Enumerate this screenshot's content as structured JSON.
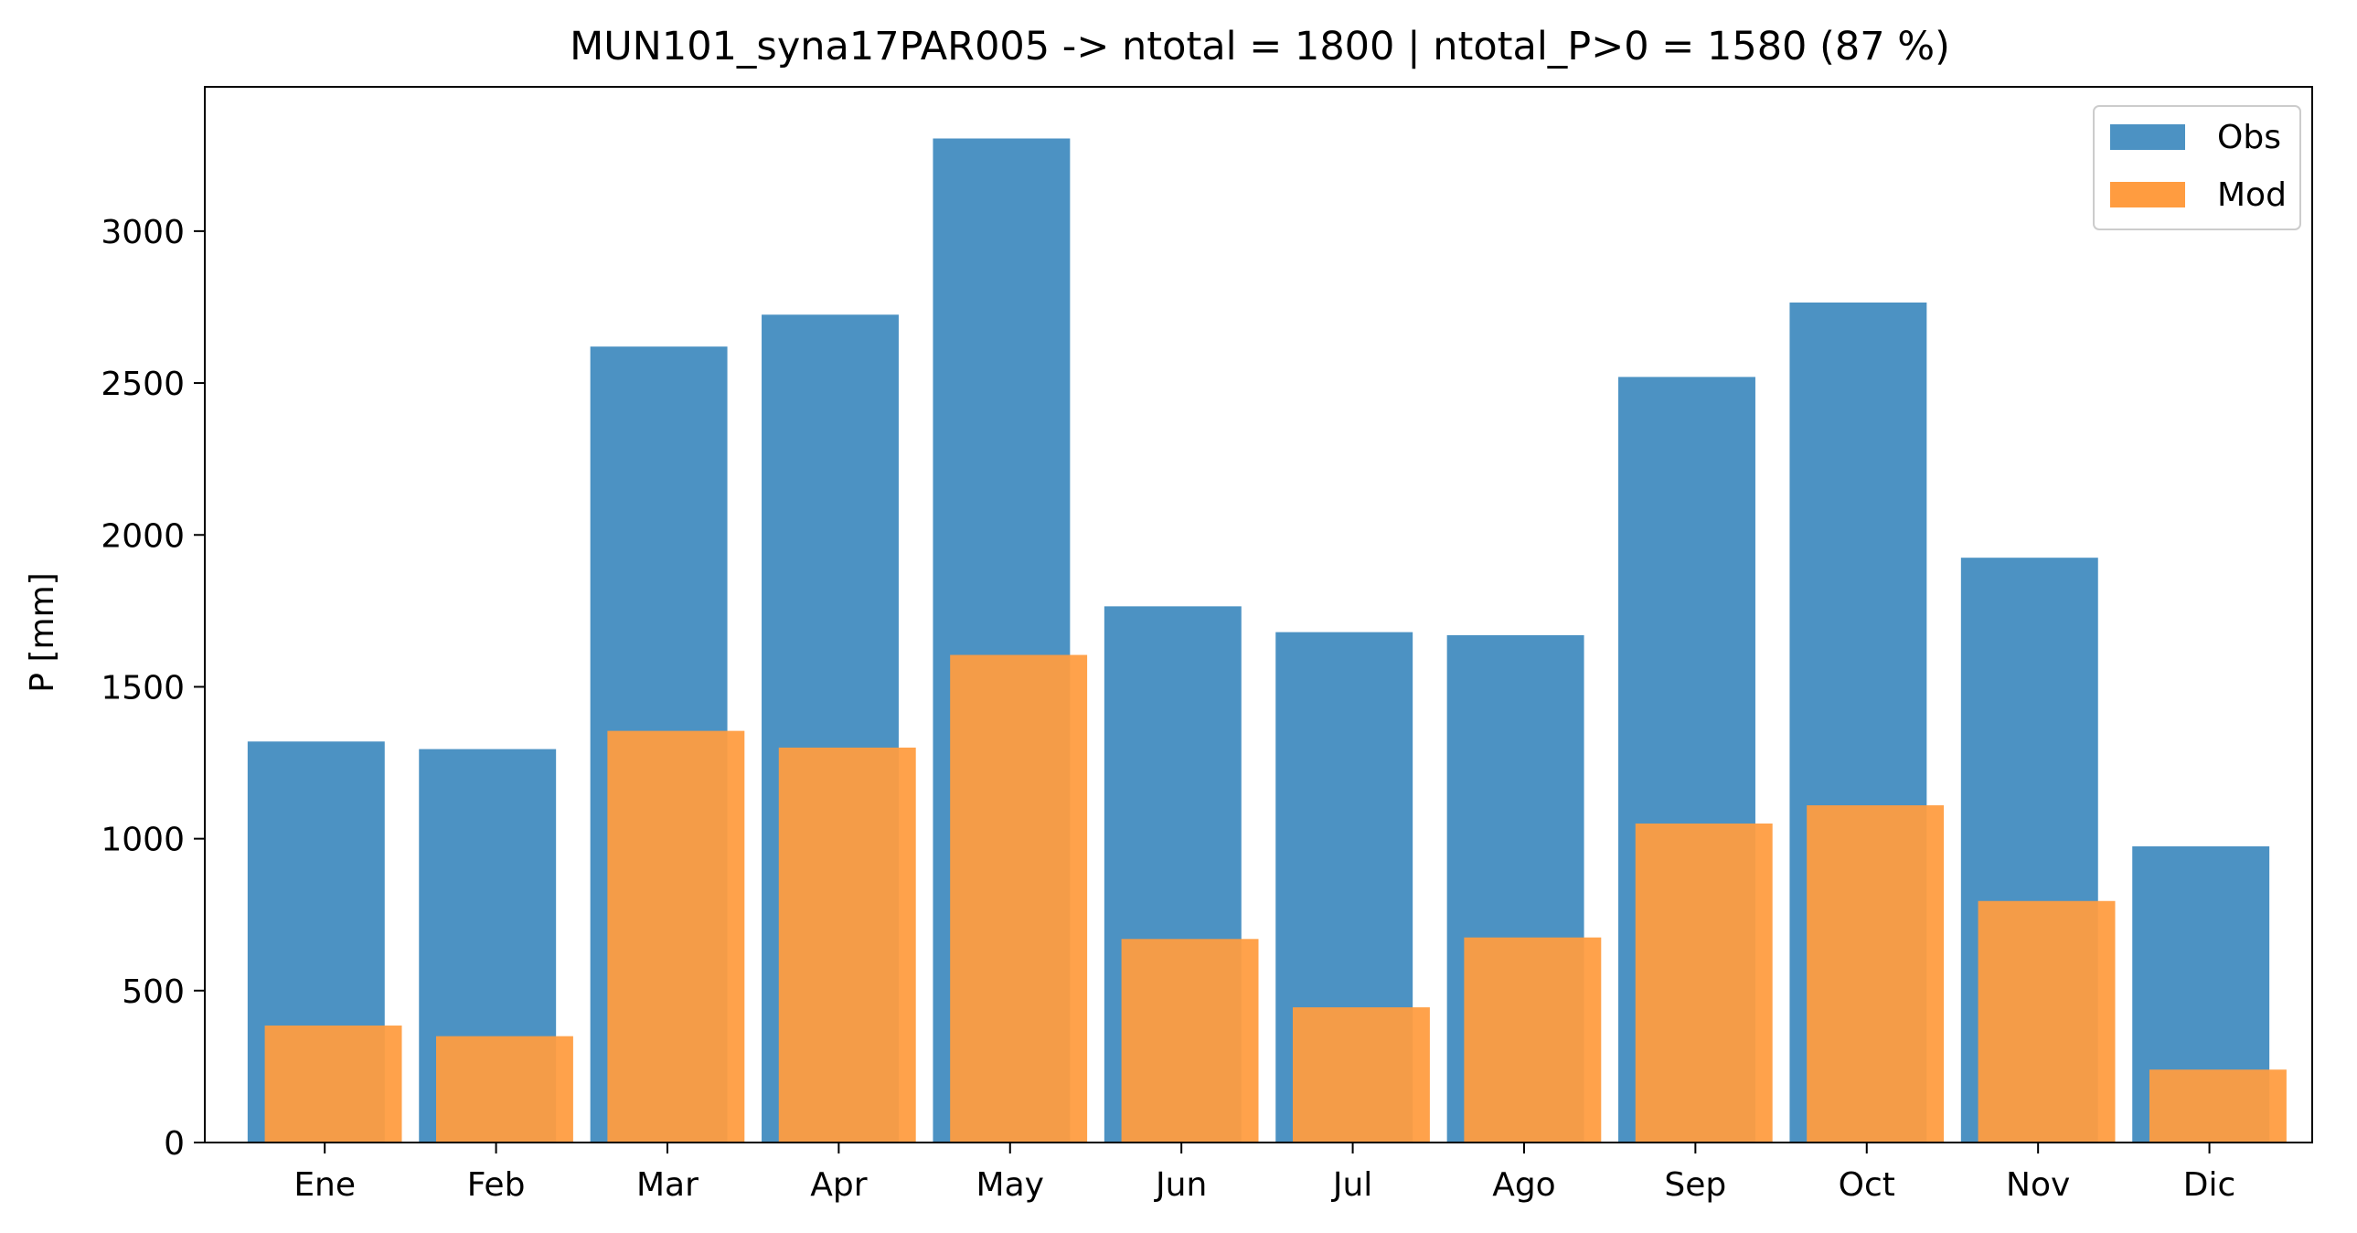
{
  "chart_data": {
    "type": "bar",
    "title": "MUN101_syna17PAR005 -> ntotal = 1800 | ntotal_P>0 = 1580 (87 %)",
    "xlabel": "",
    "ylabel": "P [mm]",
    "categories": [
      "Ene",
      "Feb",
      "Mar",
      "Apr",
      "May",
      "Jun",
      "Jul",
      "Ago",
      "Sep",
      "Oct",
      "Nov",
      "Dic"
    ],
    "series": [
      {
        "name": "Obs",
        "color": "#4c92c3",
        "values": [
          1320,
          1295,
          2620,
          2725,
          3305,
          1765,
          1680,
          1670,
          2520,
          2765,
          1925,
          975
        ]
      },
      {
        "name": "Mod",
        "color": "#ff9c40",
        "values": [
          385,
          350,
          1355,
          1300,
          1605,
          670,
          445,
          675,
          1050,
          1110,
          795,
          240
        ]
      }
    ],
    "ylim": [
      0,
      3475
    ],
    "yticks": [
      0,
      500,
      1000,
      1500,
      2000,
      2500,
      3000
    ],
    "legend": "top-right",
    "grid": false
  }
}
